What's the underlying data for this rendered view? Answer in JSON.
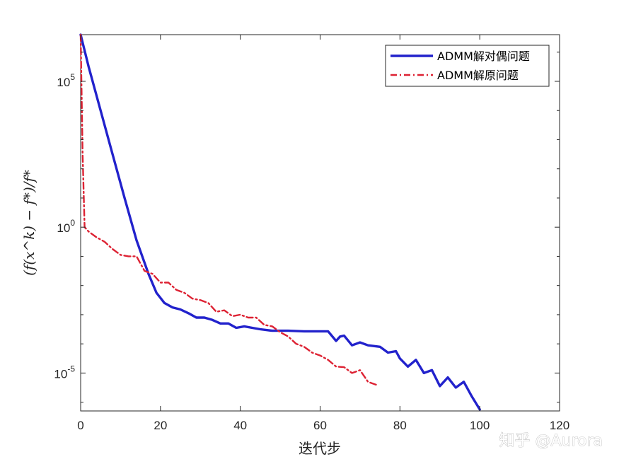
{
  "chart_data": {
    "type": "line",
    "title": "",
    "xlabel": "迭代步",
    "ylabel": "(f(x^k) − f*)/f*",
    "yscale": "log",
    "xlim": [
      0,
      120
    ],
    "ylim_exponent": [
      -6.3,
      6.6
    ],
    "x_ticks": [
      "0",
      "20",
      "40",
      "60",
      "80",
      "100",
      "120"
    ],
    "y_ticks": [
      {
        "base": "10",
        "exp": "5",
        "value_exp": 5
      },
      {
        "base": "10",
        "exp": "0",
        "value_exp": 0
      },
      {
        "base": "10",
        "exp": "-5",
        "value_exp": -5
      }
    ],
    "grid": false,
    "legend_position": "top-right",
    "series": [
      {
        "name": "ADMM解对偶问题",
        "color": "#2222cc",
        "style": "solid",
        "points": [
          [
            0,
            6.6
          ],
          [
            2,
            5.5
          ],
          [
            5,
            4.0
          ],
          [
            8,
            2.5
          ],
          [
            11,
            1.0
          ],
          [
            14,
            -0.45
          ],
          [
            17,
            -1.6
          ],
          [
            19,
            -2.25
          ],
          [
            21,
            -2.6
          ],
          [
            23,
            -2.75
          ],
          [
            25,
            -2.82
          ],
          [
            27,
            -2.95
          ],
          [
            29,
            -3.1
          ],
          [
            31,
            -3.1
          ],
          [
            33,
            -3.18
          ],
          [
            35,
            -3.3
          ],
          [
            37,
            -3.3
          ],
          [
            39,
            -3.45
          ],
          [
            41,
            -3.4
          ],
          [
            43,
            -3.45
          ],
          [
            45,
            -3.5
          ],
          [
            48,
            -3.55
          ],
          [
            52,
            -3.55
          ],
          [
            56,
            -3.57
          ],
          [
            62,
            -3.57
          ],
          [
            64,
            -3.9
          ],
          [
            65,
            -3.75
          ],
          [
            66,
            -3.72
          ],
          [
            68,
            -4.05
          ],
          [
            70,
            -3.95
          ],
          [
            72,
            -4.05
          ],
          [
            75,
            -4.1
          ],
          [
            77,
            -4.3
          ],
          [
            79,
            -4.25
          ],
          [
            80,
            -4.5
          ],
          [
            82,
            -4.78
          ],
          [
            84,
            -4.55
          ],
          [
            86,
            -5.0
          ],
          [
            88,
            -4.9
          ],
          [
            90,
            -5.45
          ],
          [
            92,
            -5.15
          ],
          [
            94,
            -5.5
          ],
          [
            96,
            -5.3
          ],
          [
            98,
            -5.8
          ],
          [
            100,
            -6.25
          ]
        ]
      },
      {
        "name": "ADMM解原问题",
        "color": "#dd2233",
        "style": "dash-dot",
        "points": [
          [
            0,
            6.6
          ],
          [
            0.5,
            2.5
          ],
          [
            1,
            0
          ],
          [
            2,
            -0.15
          ],
          [
            4,
            -0.35
          ],
          [
            6,
            -0.5
          ],
          [
            8,
            -0.75
          ],
          [
            10,
            -0.95
          ],
          [
            12,
            -1.0
          ],
          [
            14,
            -1.0
          ],
          [
            16,
            -1.5
          ],
          [
            18,
            -1.6
          ],
          [
            20,
            -1.9
          ],
          [
            22,
            -1.9
          ],
          [
            24,
            -2.15
          ],
          [
            26,
            -2.25
          ],
          [
            28,
            -2.45
          ],
          [
            30,
            -2.5
          ],
          [
            32,
            -2.6
          ],
          [
            34,
            -2.9
          ],
          [
            36,
            -2.85
          ],
          [
            38,
            -3.05
          ],
          [
            40,
            -3.0
          ],
          [
            42,
            -3.1
          ],
          [
            44,
            -3.1
          ],
          [
            46,
            -3.35
          ],
          [
            48,
            -3.4
          ],
          [
            50,
            -3.6
          ],
          [
            52,
            -3.75
          ],
          [
            54,
            -4.0
          ],
          [
            56,
            -4.1
          ],
          [
            58,
            -4.3
          ],
          [
            60,
            -4.4
          ],
          [
            62,
            -4.55
          ],
          [
            64,
            -4.78
          ],
          [
            66,
            -4.8
          ],
          [
            68,
            -5.0
          ],
          [
            70,
            -4.9
          ],
          [
            72,
            -5.3
          ],
          [
            74,
            -5.4
          ]
        ]
      }
    ]
  },
  "watermark": "知乎 @Aurora"
}
